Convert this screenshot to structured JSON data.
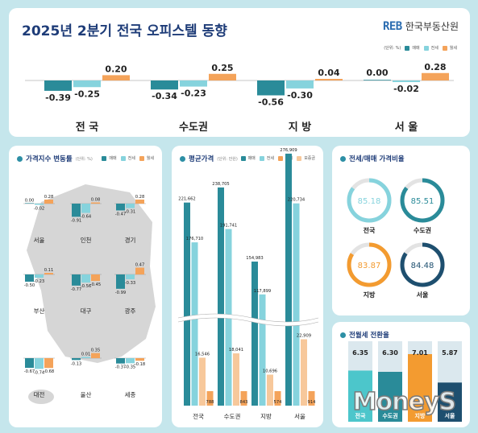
{
  "title": "2025년 2분기 전국 오피스텔 동향",
  "logo": {
    "mark": "REB",
    "name": "한국부동산원"
  },
  "colors": {
    "sale": "#2a8b99",
    "jeonse": "#86d3dd",
    "wolse": "#f4a35a",
    "deposit": "#f7c89b",
    "navy": "#1e4f6f",
    "orange": "#f39b30"
  },
  "top": {
    "unit": "(단위: %)",
    "legend": [
      "매매",
      "전세",
      "월세"
    ],
    "chart_data": {
      "type": "bar",
      "categories": [
        "전 국",
        "수도권",
        "지 방",
        "서 울"
      ],
      "series": [
        {
          "name": "매매",
          "values": [
            -0.39,
            -0.34,
            -0.56,
            0.0
          ]
        },
        {
          "name": "전세",
          "values": [
            -0.25,
            -0.23,
            -0.3,
            -0.02
          ]
        },
        {
          "name": "월세",
          "values": [
            0.2,
            0.25,
            0.04,
            0.28
          ]
        }
      ],
      "labels": [
        [
          "-0.39",
          "-0.25",
          "0.20"
        ],
        [
          "-0.34",
          "-0.23",
          "0.25"
        ],
        [
          "-0.56",
          "-0.30",
          "0.04"
        ],
        [
          "0.00",
          "-0.02",
          "0.28"
        ]
      ]
    }
  },
  "p1": {
    "title": "가격지수 변동률",
    "unit": "(단위: %)",
    "legend": [
      "매매",
      "전세",
      "월세"
    ],
    "chart_data": {
      "type": "bar",
      "categories": [
        "서울",
        "인천",
        "경기",
        "부산",
        "대구",
        "광주",
        "대전",
        "울산",
        "세종"
      ],
      "series": [
        {
          "name": "매매",
          "values": [
            0.0,
            -0.91,
            -0.47,
            -0.5,
            -0.77,
            -0.99,
            -0.67,
            -0.13,
            -0.37
          ]
        },
        {
          "name": "전세",
          "values": [
            -0.02,
            -0.64,
            -0.31,
            -0.23,
            -0.56,
            -0.33,
            -0.74,
            0.01,
            -0.35
          ]
        },
        {
          "name": "월세",
          "values": [
            0.28,
            0.08,
            0.28,
            0.11,
            -0.45,
            0.47,
            -0.68,
            0.35,
            -0.18
          ]
        }
      ],
      "labels": [
        [
          "0.00",
          "-0.02",
          "0.28"
        ],
        [
          "-0.91",
          "-0.64",
          "0.08"
        ],
        [
          "-0.47",
          "-0.31",
          "0.28"
        ],
        [
          "-0.50",
          "-0.23",
          "0.11"
        ],
        [
          "-0.77",
          "-0.56",
          "-0.45"
        ],
        [
          "-0.99",
          "-0.33",
          "0.47"
        ],
        [
          "-0.67",
          "-0.74",
          "-0.68"
        ],
        [
          "-0.13",
          "0.01",
          "0.35"
        ],
        [
          "-0.37",
          "-0.35",
          "-0.18"
        ]
      ]
    }
  },
  "p2": {
    "title": "평균가격",
    "unit": "(단위: 만원)",
    "legend": [
      "매매",
      "전세",
      "월세",
      "보증금"
    ],
    "chart_data": {
      "type": "bar",
      "categories": [
        "전국",
        "수도권",
        "지방",
        "서울"
      ],
      "series": [
        {
          "name": "매매",
          "values": [
            221662,
            238705,
            154983,
            276909
          ]
        },
        {
          "name": "전세",
          "values": [
            176710,
            191741,
            117899,
            220734
          ]
        },
        {
          "name": "보증금",
          "values": [
            16546,
            18041,
            10696,
            22909
          ]
        },
        {
          "name": "월세",
          "values": [
            788,
            843,
            574,
            914
          ]
        }
      ],
      "labels": [
        [
          "221,662",
          "176,710",
          "16,546",
          "788"
        ],
        [
          "238,705",
          "191,741",
          "18,041",
          "843"
        ],
        [
          "154,983",
          "117,899",
          "10,696",
          "574"
        ],
        [
          "276,909",
          "220,734",
          "22,909",
          "914"
        ]
      ]
    }
  },
  "p3": {
    "title": "전세/매매 가격비율",
    "chart_data": {
      "type": "pie",
      "categories": [
        "전국",
        "수도권",
        "지방",
        "서울"
      ],
      "values": [
        85.18,
        85.51,
        83.87,
        84.48
      ],
      "labels": [
        "85.18",
        "85.51",
        "83.87",
        "84.48"
      ]
    }
  },
  "p4": {
    "title": "전월세 전환율",
    "chart_data": {
      "type": "bar",
      "categories": [
        "전국",
        "수도권",
        "지방",
        "서울"
      ],
      "values": [
        6.35,
        6.3,
        7.01,
        5.87
      ],
      "labels": [
        "6.35",
        "6.30",
        "7.01",
        "5.87"
      ]
    }
  },
  "watermark": "MoneyS"
}
